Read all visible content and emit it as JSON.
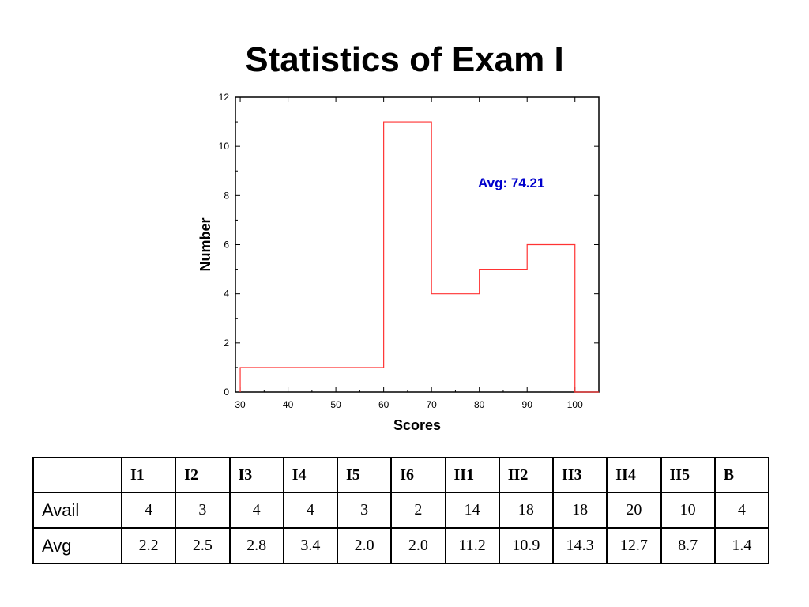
{
  "slide": {
    "title": "Statistics of Exam I"
  },
  "chart_data": {
    "type": "histogram",
    "xlabel": "Scores",
    "ylabel": "Number",
    "xlim": [
      29,
      105
    ],
    "ylim": [
      0,
      12
    ],
    "x_ticks": [
      30,
      40,
      50,
      60,
      70,
      80,
      90,
      100
    ],
    "y_ticks": [
      0,
      2,
      4,
      6,
      8,
      10,
      12
    ],
    "bins": [
      {
        "from": 30,
        "to": 60,
        "count": 1
      },
      {
        "from": 60,
        "to": 70,
        "count": 11
      },
      {
        "from": 70,
        "to": 80,
        "count": 4
      },
      {
        "from": 80,
        "to": 90,
        "count": 5
      },
      {
        "from": 90,
        "to": 100,
        "count": 6
      }
    ],
    "line_color": "#ff3333",
    "annotation": {
      "text": "Avg: 74.21",
      "color": "#0000cc"
    },
    "grid": false
  },
  "table": {
    "columns": [
      "",
      "I1",
      "I2",
      "I3",
      "I4",
      "I5",
      "I6",
      "II1",
      "II2",
      "II3",
      "II4",
      "II5",
      "B"
    ],
    "rows": [
      {
        "label": "Avail",
        "values": [
          "4",
          "3",
          "4",
          "4",
          "3",
          "2",
          "14",
          "18",
          "18",
          "20",
          "10",
          "4"
        ]
      },
      {
        "label": "Avg",
        "values": [
          "2.2",
          "2.5",
          "2.8",
          "3.4",
          "2.0",
          "2.0",
          "11.2",
          "10.9",
          "14.3",
          "12.7",
          "8.7",
          "1.4"
        ]
      }
    ]
  }
}
